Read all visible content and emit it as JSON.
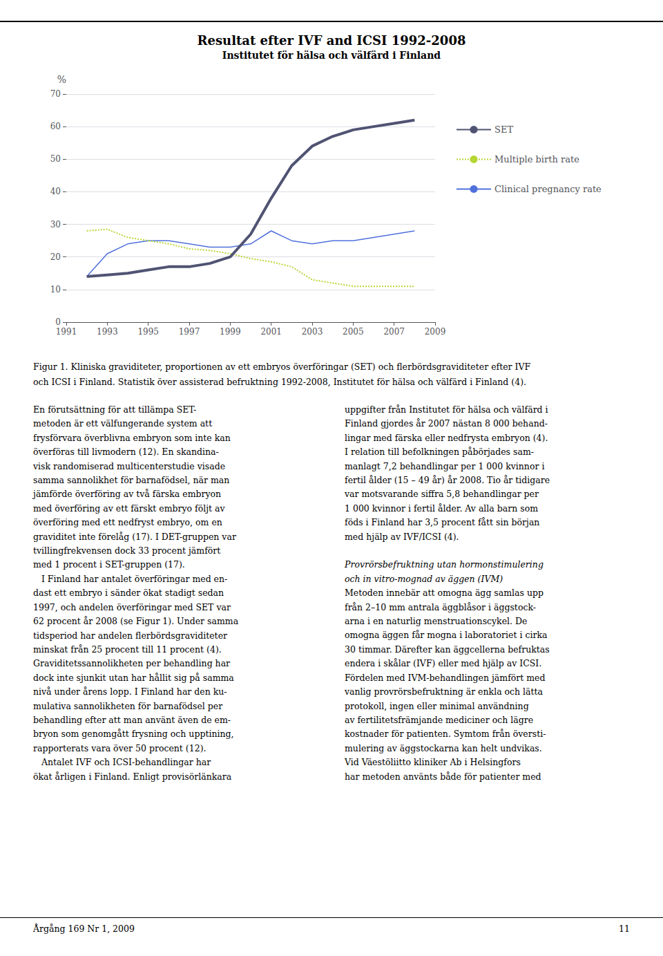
{
  "chart_data": {
    "type": "line",
    "title": "Resultat efter IVF and ICSI 1992-2008",
    "subtitle": "Institutet för hälsa och välfärd i Finland",
    "y_label": "%",
    "x": [
      1992,
      1993,
      1994,
      1995,
      1996,
      1997,
      1998,
      1999,
      2000,
      2001,
      2002,
      2003,
      2004,
      2005,
      2006,
      2007,
      2008
    ],
    "series": [
      {
        "name": "Clinical pregnancy rate",
        "line_style": "solid",
        "values": [
          14,
          21,
          24,
          25,
          25,
          24,
          23,
          23,
          24,
          28,
          25,
          24,
          25,
          25,
          26,
          27,
          28
        ]
      },
      {
        "name": "Multiple birth rate",
        "line_style": "dotted",
        "values": [
          28,
          28.5,
          26,
          25,
          24,
          22.5,
          22,
          21,
          19.5,
          18.5,
          17,
          13,
          12,
          11,
          11,
          11,
          11
        ]
      },
      {
        "name": "SET",
        "line_style": "thick",
        "values": [
          14,
          14.5,
          15,
          16,
          17,
          17,
          18,
          20,
          27,
          38,
          48,
          54,
          57,
          59,
          60,
          61,
          62
        ]
      }
    ],
    "xlim": [
      1991,
      2009
    ],
    "xticks": [
      1991,
      1993,
      1995,
      1997,
      1999,
      2001,
      2003,
      2005,
      2007,
      2009
    ],
    "ylim": [
      0,
      70
    ],
    "yticks": [
      0,
      10,
      20,
      30,
      40,
      50,
      60,
      70
    ],
    "grid": true,
    "legend": "right",
    "caption": [
      "Figur 1. Kliniska graviditeter, proportionen av ett embryos överföringar (SET) och flerbördsgraviditeter efter IVF",
      "och ICSI i Finland. Statistik över assisterad befruktning 1992-2008, Institutet för hälsa och välfärd i Finland (4)."
    ],
    "body_columns": [
      [
        {
          "lines": [
            "En förutsättning för att tillämpa SET-",
            "metoden är ett välfungerande system att",
            "frysförvara överblivna embryon som inte kan",
            "överföras till livmodern (12). En skandina-",
            "visk randomiserad multicenterstudie visade",
            "samma sannolikhet för barnafödsel, när man",
            "jämförde överföring av två färska embryon",
            "med överföring av ett färskt embryo följt av",
            "överföring med ett nedfryst embryo, om en",
            "graviditet inte förelåg (17). I DET-gruppen var",
            "tvillingfrekvensen dock 33 procent jämfört",
            "med 1 procent i SET-gruppen (17).",
            "   I Finland har antalet överföringar med en-",
            "dast ett embryo i sänder ökat stadigt sedan",
            "1997, och andelen överföringar med SET var",
            "62 procent år 2008 (se Figur 1). Under samma",
            "tidsperiod har andelen flerbördsgraviditeter",
            "minskat från 25 procent till 11 procent (4).",
            "Graviditetssannolikheten per behandling har",
            "dock inte sjunkit utan har hållit sig på samma",
            "nivå under årens lopp. I Finland har den ku-",
            "mulativa sannolikheten för barnafödsel per",
            "behandling efter att man använt även de em-",
            "bryon som genomgått frysning och upptining,",
            "rapporterats vara över 50 procent (12).",
            "   Antalet IVF och ICSI-behandlingar har",
            "ökat årligen i Finland. Enligt provisörlänkara"
          ]
        }
      ],
      [
        {
          "lines": [
            "uppgifter från Institutet för hälsa och välfärd i",
            "Finland gjordes år 2007 nästan 8 000 behand-",
            "lingar med färska eller nedfrysta embryon (4).",
            "I relation till befolkningen påbörjades sam-",
            "manlagt 7,2 behandlingar per 1 000 kvinnor i",
            "fertil ålder (15 – 49 år) år 2008. Tio år tidigare",
            "var motsvarande siffra 5,8 behandlingar per",
            "1 000 kvinnor i fertil ålder. Av alla barn som",
            "föds i Finland har 3,5 procent fått sin början",
            "med hjälp av IVF/ICSI (4)."
          ]
        },
        {
          "heading": [
            "Provrörsbefruktning utan hormonstimulering",
            "och in vitro-mognad av äggen (IVM)"
          ],
          "lines": [
            "Metoden innebär att omogna ägg samlas upp",
            "från 2–10 mm antrala äggblåsor i äggstock-",
            "arna i en naturlig menstruationscykel. De",
            "omogna äggen får mogna i laboratoriet i cirka",
            "30 timmar. Därefter kan äggcellerna befruktas",
            "endera i skålar (IVF) eller med hjälp av ICSI.",
            "Fördelen med IVM-behandlingen jämfört med",
            "vanlig provrörsbefruktning är enkla och lätta",
            "protokoll, ingen eller minimal användning",
            "av fertilitetsfrämjande mediciner och lägre",
            "kostnader för patienten. Symtom från översti-",
            "mulering av äggstockarna kan helt undvikas.",
            "Vid Väestöliitto kliniker Ab i Helsingfors",
            "har metoden använts både för patienter med"
          ]
        }
      ]
    ],
    "footer": [
      "Årgång 169 Nr 1, 2009",
      "11"
    ]
  }
}
